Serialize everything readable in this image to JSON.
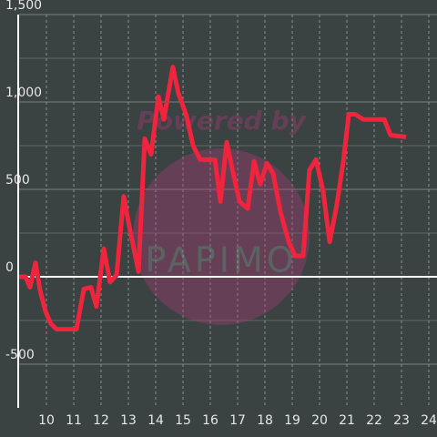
{
  "chart_data": {
    "type": "line",
    "watermark": {
      "line1": "Powered by",
      "line2": "PAPIMO"
    },
    "x": [
      9.0,
      9.23,
      9.4,
      9.6,
      9.77,
      9.97,
      10.17,
      10.37,
      11.1,
      11.37,
      11.63,
      11.83,
      12.1,
      12.33,
      12.57,
      12.83,
      13.03,
      13.37,
      13.6,
      13.83,
      14.1,
      14.3,
      14.63,
      14.83,
      15.13,
      15.37,
      15.63,
      16.17,
      16.37,
      16.6,
      16.87,
      17.07,
      17.37,
      17.6,
      17.83,
      18.07,
      18.3,
      18.57,
      18.87,
      19.1,
      19.4,
      19.63,
      19.87,
      20.13,
      20.37,
      20.63,
      20.87,
      21.07,
      21.3,
      21.6,
      22.37,
      22.6,
      23.17
    ],
    "values": [
      0,
      0,
      -60,
      80,
      -80,
      -200,
      -270,
      -300,
      -300,
      -70,
      -60,
      -170,
      160,
      -30,
      10,
      460,
      290,
      30,
      790,
      700,
      1030,
      900,
      1200,
      1050,
      920,
      750,
      670,
      670,
      430,
      770,
      570,
      430,
      390,
      660,
      530,
      650,
      590,
      370,
      200,
      120,
      120,
      610,
      670,
      490,
      200,
      410,
      660,
      930,
      930,
      900,
      900,
      810,
      800
    ],
    "color": "#f0243c",
    "xlim": [
      9,
      24.3
    ],
    "xticks": [
      10,
      11,
      12,
      13,
      14,
      15,
      16,
      17,
      18,
      19,
      20,
      21,
      22,
      23,
      24
    ],
    "ylim": [
      -750,
      1500
    ],
    "yticks": [
      {
        "value": -500,
        "label": "-500"
      },
      0,
      500,
      {
        "value": 1000,
        "label": "1,000"
      },
      {
        "value": 1500,
        "label": "1,500"
      }
    ],
    "grid": true
  }
}
